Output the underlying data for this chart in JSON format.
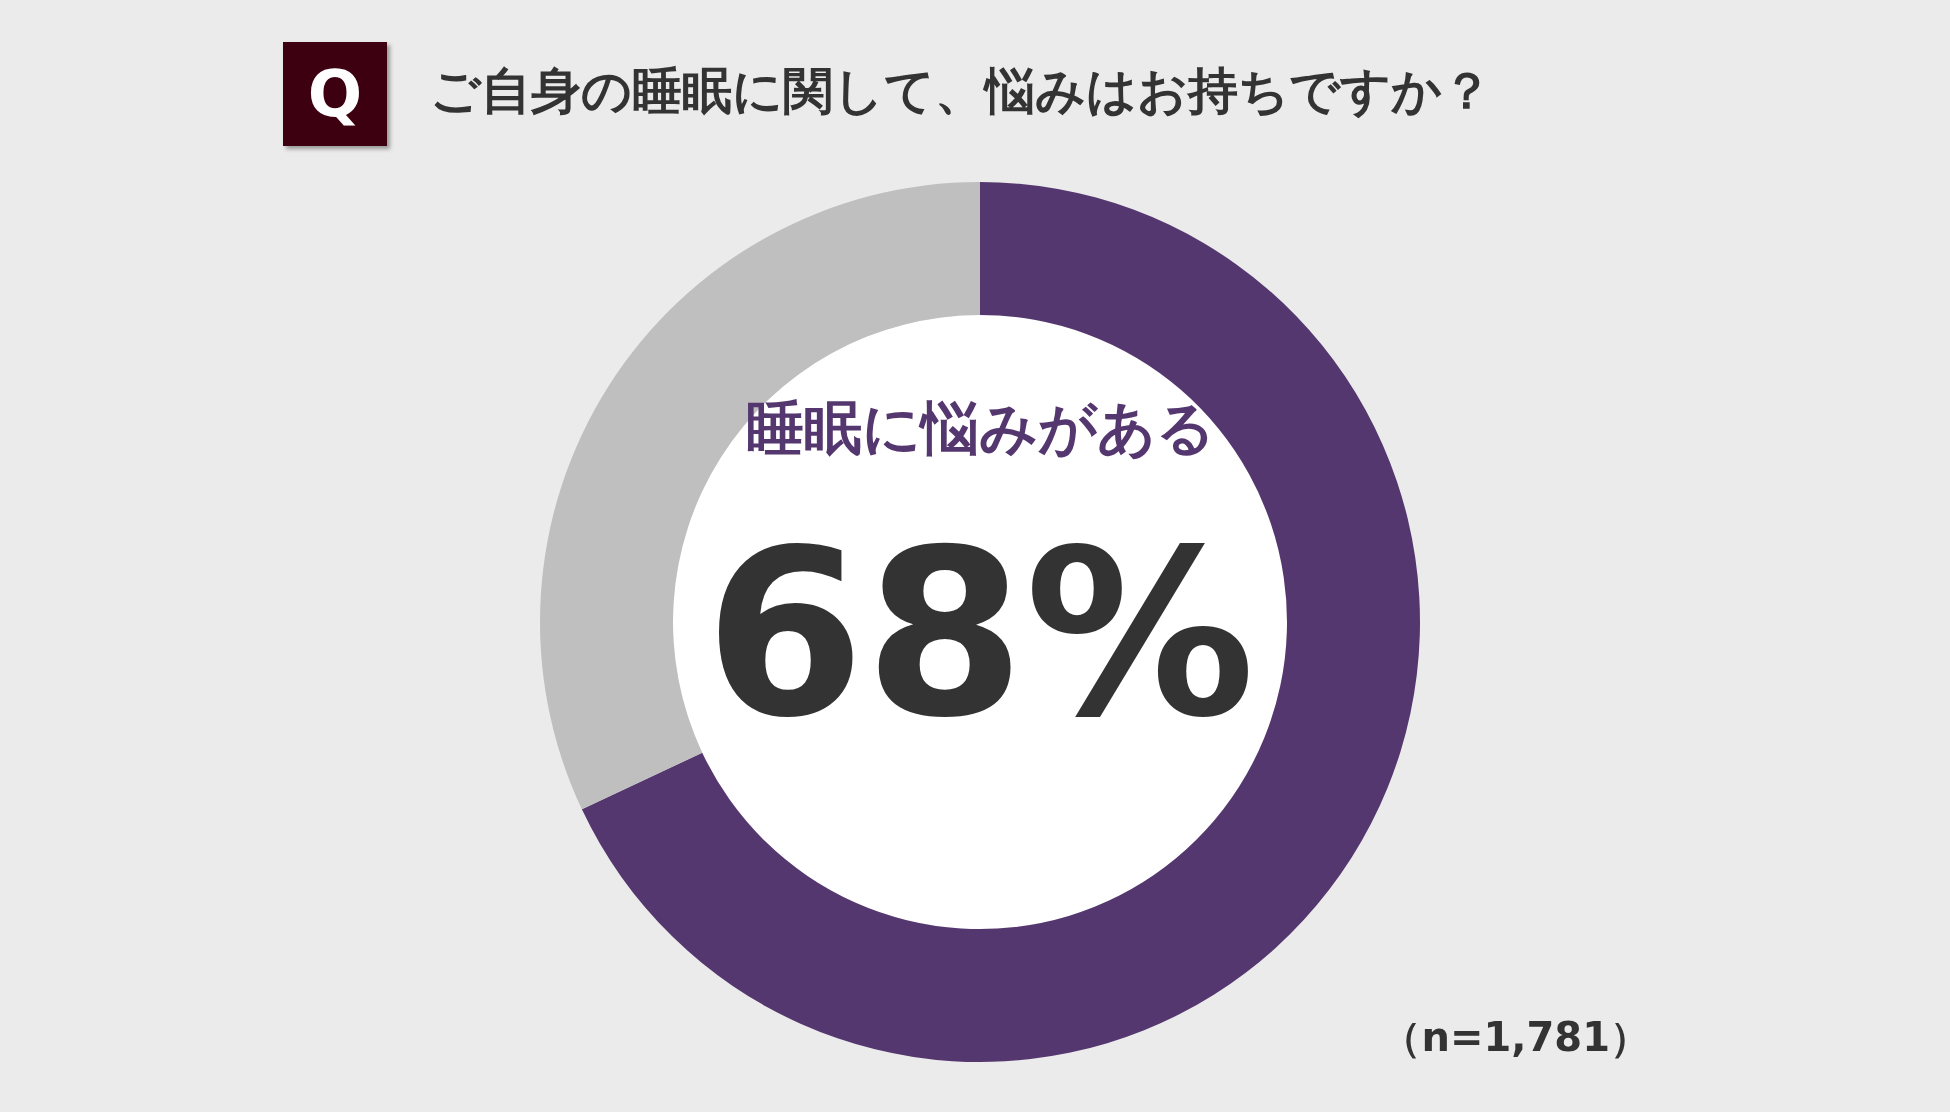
{
  "chart_data": {
    "type": "donut",
    "title": "ご自身の睡眠に関して、悩みはお持ちですか？",
    "categories": [
      "睡眠に悩みがある",
      null
    ],
    "values": [
      68,
      32
    ],
    "colors": [
      "#55376f",
      "#bfbfbf"
    ],
    "value_labels": [
      "68%",
      null
    ],
    "annotations": [
      "Q",
      "（n=1,781）"
    ]
  }
}
